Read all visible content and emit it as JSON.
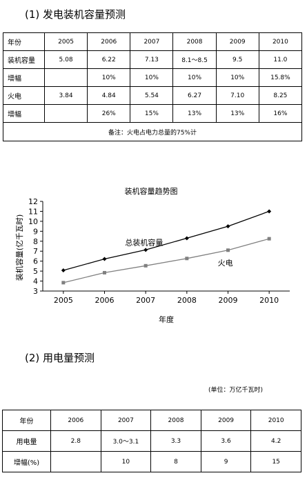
{
  "section1": {
    "title": "(1) 发电装机容量预测",
    "table": {
      "header": [
        "年份",
        "2005",
        "2006",
        "2007",
        "2008",
        "2009",
        "2010"
      ],
      "rows": [
        [
          "装机容量",
          "5.08",
          "6.22",
          "7.13",
          "8.1～8.5",
          "9.5",
          "11.0"
        ],
        [
          "增幅",
          "",
          "10%",
          "10%",
          "10%",
          "10%",
          "15.8%"
        ],
        [
          "火电",
          "3.84",
          "4.84",
          "5.54",
          "6.27",
          "7.10",
          "8.25"
        ],
        [
          "增幅",
          "",
          "26%",
          "15%",
          "13%",
          "13%",
          "16%"
        ]
      ],
      "note": "备注：火电占电力总量的75%计"
    }
  },
  "chart_data": {
    "type": "line",
    "title": "装机容量趋势图",
    "xlabel": "年度",
    "ylabel": "装机容量(亿千瓦时)",
    "x": [
      2005,
      2006,
      2007,
      2008,
      2009,
      2010
    ],
    "xlim": [
      2004.5,
      2010.5
    ],
    "ylim": [
      3,
      12
    ],
    "yticks": [
      3,
      4,
      5,
      6,
      7,
      8,
      9,
      10,
      11,
      12
    ],
    "grid": false,
    "series": [
      {
        "name": "总装机容量",
        "values": [
          5.08,
          6.22,
          7.13,
          8.3,
          9.5,
          11.0
        ],
        "marker": "diamond",
        "color": "#000000"
      },
      {
        "name": "火电",
        "values": [
          3.84,
          4.84,
          5.54,
          6.27,
          7.1,
          8.25
        ],
        "marker": "square",
        "color": "#808080"
      }
    ]
  },
  "section2": {
    "title": "(2) 用电量预测",
    "unit": "(单位：万亿千瓦时)",
    "table": {
      "header": [
        "年份",
        "2006",
        "2007",
        "2008",
        "2009",
        "2010"
      ],
      "rows": [
        [
          "用电量",
          "2.8",
          "3.0～3.1",
          "3.3",
          "3.6",
          "4.2"
        ],
        [
          "增幅(%)",
          "",
          "10",
          "8",
          "9",
          "15"
        ]
      ]
    }
  }
}
